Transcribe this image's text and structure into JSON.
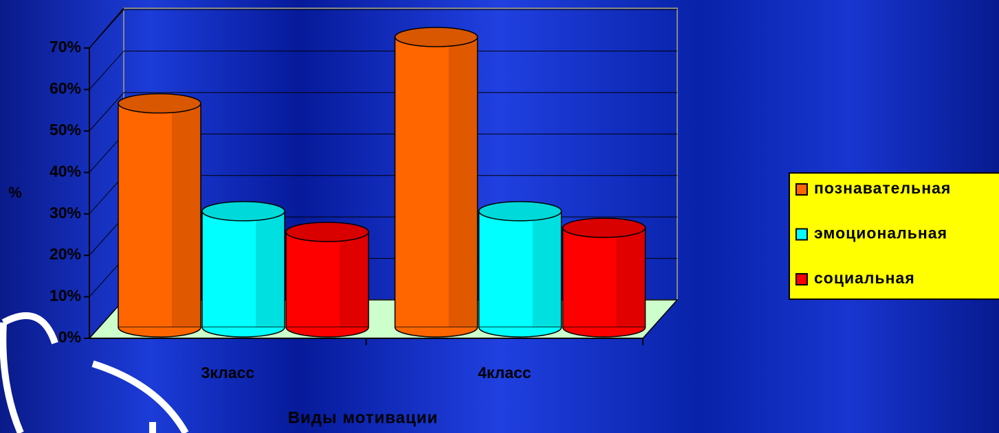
{
  "chart_data": {
    "type": "bar",
    "categories": [
      "3класс",
      "4класс"
    ],
    "series": [
      {
        "name": "познавательная",
        "color": "#ff6600",
        "values": [
          54,
          70
        ]
      },
      {
        "name": "эмоциональная",
        "color": "#00ffff",
        "values": [
          28,
          28
        ]
      },
      {
        "name": "социальная",
        "color": "#ff0000",
        "values": [
          23,
          24
        ]
      }
    ],
    "ylabel": "%",
    "xlabel": "Виды мотивации",
    "ylim": [
      0,
      70
    ],
    "yticks": [
      {
        "value": 0,
        "label": "0%"
      },
      {
        "value": 10,
        "label": "10%"
      },
      {
        "value": 20,
        "label": "20%"
      },
      {
        "value": 30,
        "label": "30%"
      },
      {
        "value": 40,
        "label": "40%"
      },
      {
        "value": 50,
        "label": "50%"
      },
      {
        "value": 60,
        "label": "60%"
      },
      {
        "value": 70,
        "label": "70%"
      }
    ],
    "grid": true,
    "legend": "right"
  }
}
